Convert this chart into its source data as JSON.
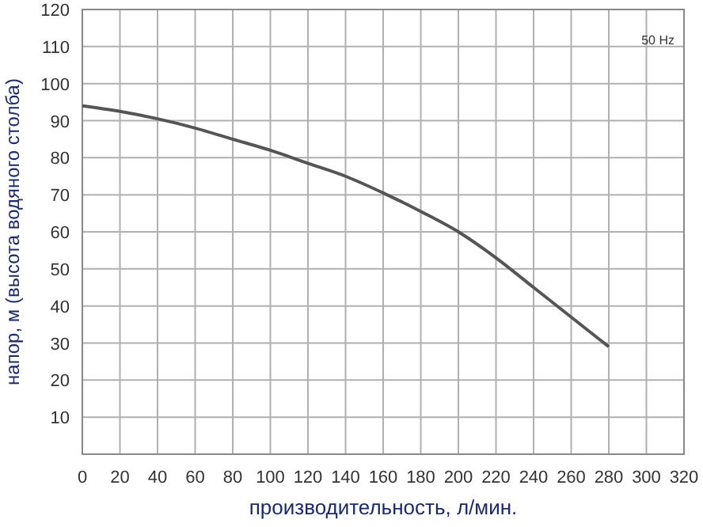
{
  "chart_data": {
    "type": "line",
    "xlabel": "производительность, л/мин.",
    "ylabel": "напор, м (высота водяного столба)",
    "annotations": [
      "50 Hz"
    ],
    "x": [
      0,
      20,
      40,
      60,
      80,
      100,
      120,
      140,
      160,
      180,
      200,
      220,
      240,
      260,
      280
    ],
    "series": [
      {
        "color": "#555555",
        "values": [
          94,
          92.5,
          90.5,
          88,
          85,
          82,
          78.5,
          75,
          70.5,
          65.5,
          60,
          53,
          45,
          37,
          29
        ]
      }
    ],
    "xlim": [
      0,
      320
    ],
    "xticks": [
      0,
      20,
      40,
      60,
      80,
      100,
      120,
      140,
      160,
      180,
      200,
      220,
      240,
      260,
      280,
      300,
      320
    ],
    "ylim": [
      0,
      120
    ],
    "yticks": [
      10,
      20,
      30,
      40,
      50,
      60,
      70,
      80,
      90,
      100,
      110,
      120
    ],
    "grid": true,
    "marker": "none",
    "line_style": "solid"
  }
}
